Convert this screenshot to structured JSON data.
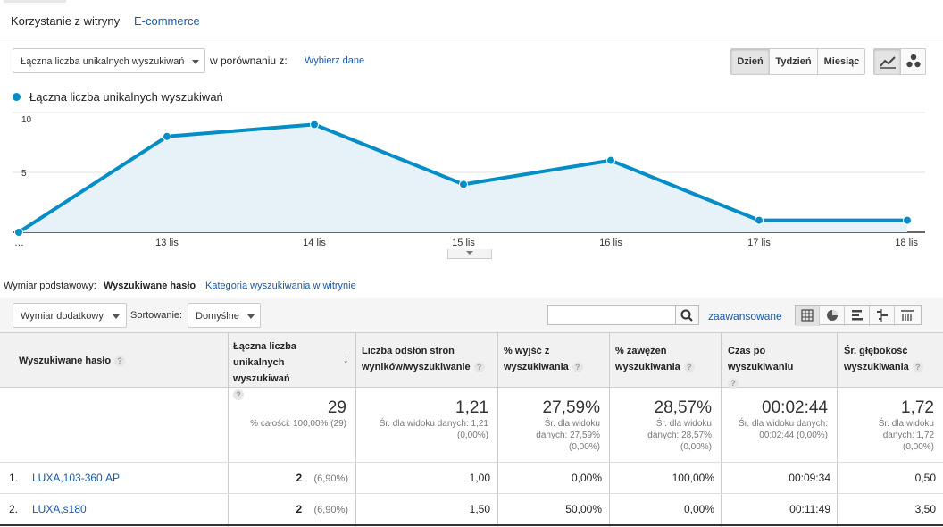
{
  "tabs": [
    {
      "label": "Korzystanie z witryny"
    },
    {
      "label": "E-commerce"
    }
  ],
  "toolbar": {
    "metric_select": "Łączna liczba unikalnych wyszukiwań",
    "compare_label": "w porównaniu z:",
    "compare_link": "Wybierz dane",
    "period_buttons": [
      "Dzień",
      "Tydzień",
      "Miesiąc"
    ],
    "active_period": "Dzień",
    "chart_type_icons": [
      "line-chart-icon",
      "motion-chart-icon"
    ]
  },
  "legend": {
    "label": "Łączna liczba unikalnych wyszukiwań",
    "color": "#058dc7"
  },
  "chart_data": {
    "type": "area",
    "x": [
      "…",
      "13 lis",
      "14 lis",
      "15 lis",
      "16 lis",
      "17 lis",
      "18 lis"
    ],
    "series": [
      {
        "name": "Łączna liczba unikalnych wyszukiwań",
        "values": [
          0,
          8,
          9,
          4,
          6,
          1,
          1
        ]
      }
    ],
    "ylim": [
      0,
      10
    ],
    "yticks": [
      "10",
      "5"
    ],
    "grid": true,
    "color": "#058dc7"
  },
  "dimension": {
    "label": "Wymiar podstawowy:",
    "active": "Wyszukiwane hasło",
    "other": "Kategoria wyszukiwania w witrynie"
  },
  "table_controls": {
    "secondary_dimension": "Wymiar dodatkowy",
    "sort_label": "Sortowanie:",
    "sort_value": "Domyślne",
    "search_placeholder": "",
    "advanced_link": "zaawansowane",
    "view_icons": [
      "data-table-icon",
      "pie-chart-icon",
      "bar-chart-icon",
      "comparison-icon",
      "pivot-icon"
    ]
  },
  "table": {
    "columns": [
      {
        "label": "Wyszukiwane hasło"
      },
      {
        "label": "Łączna liczba unikalnych wyszukiwań"
      },
      {
        "label": "Liczba odsłon stron wyników/wyszukiwanie"
      },
      {
        "label": "% wyjść z wyszukiwania"
      },
      {
        "label": "% zawężeń wyszukiwania"
      },
      {
        "label": "Czas po wyszukiwaniu"
      },
      {
        "label": "Śr. głębokość wyszukiwania"
      }
    ],
    "totals": [
      {
        "value": "29",
        "sub": "% całości: 100,00% (29)"
      },
      {
        "value": "1,21",
        "sub": "Śr. dla widoku danych: 1,21 (0,00%)"
      },
      {
        "value": "27,59%",
        "sub": "Śr. dla widoku danych: 27,59% (0,00%)"
      },
      {
        "value": "28,57%",
        "sub": "Śr. dla widoku danych: 28,57% (0,00%)"
      },
      {
        "value": "00:02:44",
        "sub": "Śr. dla widoku danych: 00:02:44 (0,00%)"
      },
      {
        "value": "1,72",
        "sub": "Śr. dla widoku danych: 1,72 (0,00%)"
      }
    ],
    "rows": [
      {
        "index": "1.",
        "term": "LUXA,103-360,AP",
        "searches": "2",
        "searches_pct": "(6,90%)",
        "pages": "1,00",
        "exits": "0,00%",
        "refinements": "100,00%",
        "time": "00:09:34",
        "depth": "0,50"
      },
      {
        "index": "2.",
        "term": "LUXA,s180",
        "searches": "2",
        "searches_pct": "(6,90%)",
        "pages": "1,50",
        "exits": "50,00%",
        "refinements": "0,00%",
        "time": "00:11:49",
        "depth": "3,50"
      }
    ]
  }
}
